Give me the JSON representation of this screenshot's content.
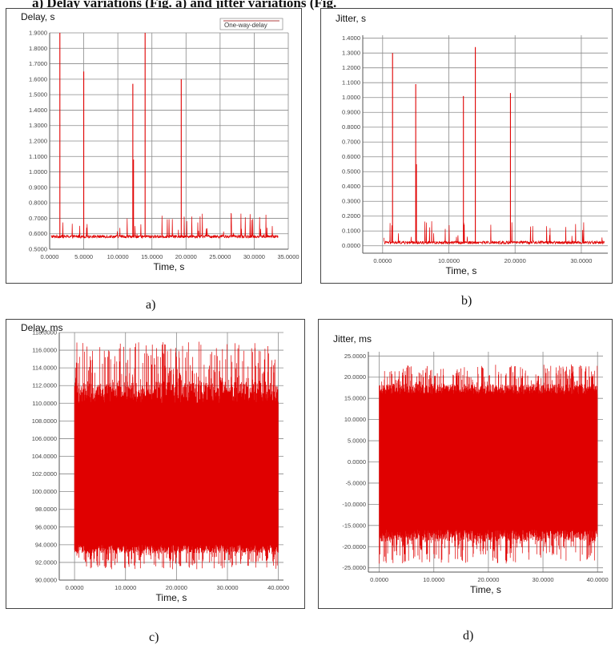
{
  "figure": {
    "top_caption_left": "a) Delay variations (Fig. a) and jitter variations (Fig.",
    "panel_labels": [
      "a)",
      "b)",
      "c)",
      "d)"
    ]
  },
  "colors": {
    "series": "#e00000",
    "grid": "#8a8a8a",
    "axis": "#555555"
  },
  "chart_data": [
    {
      "type": "line",
      "ylabel": "Delay, s",
      "xlabel": "Time, s",
      "xlim": [
        0,
        35
      ],
      "ylim": [
        0.5,
        1.9
      ],
      "xticks": [
        "0.0000",
        "5.0000",
        "10.0000",
        "15.0000",
        "20.0000",
        "25.0000",
        "30.0000",
        "35.0000"
      ],
      "yticks": [
        "0.5000",
        "0.6000",
        "0.7000",
        "0.8000",
        "0.9000",
        "1.0000",
        "1.1000",
        "1.2000",
        "1.3000",
        "1.4000",
        "1.5000",
        "1.6000",
        "1.7000",
        "1.8000",
        "1.9000"
      ],
      "grid": true,
      "legend": {
        "position": "top-right",
        "entries": [
          "One-way-delay"
        ]
      },
      "series": [
        {
          "name": "One-way-delay",
          "baseline": 0.58,
          "noise": 0.02,
          "spikes": [
            [
              1.5,
              1.9
            ],
            [
              5.0,
              1.65
            ],
            [
              12.2,
              1.57
            ],
            [
              12.3,
              1.08
            ],
            [
              14.0,
              1.9
            ],
            [
              19.3,
              1.6
            ]
          ]
        }
      ]
    },
    {
      "type": "line",
      "ylabel": "Jitter, s",
      "xlabel": "Time, s",
      "xlim": [
        -3,
        34
      ],
      "ylim": [
        -0.05,
        1.42
      ],
      "xticks": [
        "0.0000",
        "10.0000",
        "20.0000",
        "30.0000"
      ],
      "yticks": [
        "0.0000",
        "0.1000",
        "0.2000",
        "0.3000",
        "0.4000",
        "0.5000",
        "0.6000",
        "0.7000",
        "0.8000",
        "0.9000",
        "1.0000",
        "1.1000",
        "1.2000",
        "1.3000",
        "1.4000"
      ],
      "grid": true,
      "series": [
        {
          "baseline": 0.02,
          "noise": 0.02,
          "spikes": [
            [
              1.5,
              1.3
            ],
            [
              5.0,
              1.09
            ],
            [
              5.1,
              0.55
            ],
            [
              12.2,
              1.01
            ],
            [
              14.0,
              1.34
            ],
            [
              19.3,
              1.03
            ]
          ]
        }
      ]
    },
    {
      "type": "line",
      "ylabel": "Delay, ms",
      "xlabel": "Time, s",
      "xlim": [
        -3,
        41
      ],
      "ylim": [
        90,
        118
      ],
      "xticks": [
        "0.0000",
        "10.0000",
        "20.0000",
        "30.0000",
        "40.0000"
      ],
      "yticks": [
        "90.0000",
        "92.0000",
        "94.0000",
        "96.0000",
        "98.0000",
        "100.0000",
        "102.0000",
        "104.0000",
        "106.0000",
        "108.0000",
        "110.0000",
        "112.0000",
        "114.0000",
        "116.0000",
        "118.0000"
      ],
      "grid": true,
      "series": [
        {
          "band": [
            94.0,
            110.0
          ],
          "outlier_range": [
            91.2,
            117.0
          ]
        }
      ]
    },
    {
      "type": "line",
      "ylabel": "Jitter, ms",
      "xlabel": "Time, s",
      "xlim": [
        -2,
        41
      ],
      "ylim": [
        -26,
        26
      ],
      "xticks": [
        "0.0000",
        "10.0000",
        "20.0000",
        "30.0000",
        "40.0000"
      ],
      "yticks": [
        "-25.0000",
        "-20.0000",
        "-15.0000",
        "-10.0000",
        "-5.0000",
        "0.0000",
        "5.0000",
        "10.0000",
        "15.0000",
        "20.0000",
        "25.0000"
      ],
      "grid": true,
      "series": [
        {
          "band": [
            -16.0,
            16.0
          ],
          "outlier_range": [
            -24.0,
            23.0
          ]
        }
      ]
    }
  ]
}
